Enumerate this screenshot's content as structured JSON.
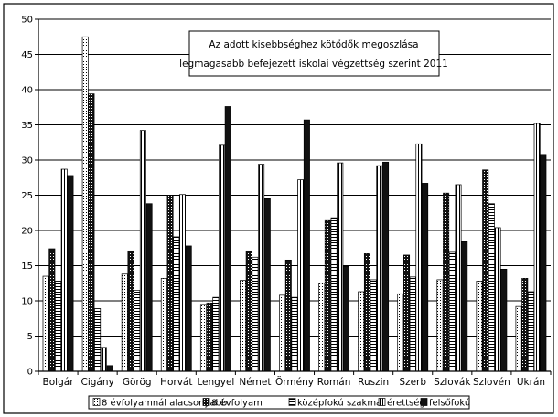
{
  "chart_data": {
    "type": "bar",
    "title_line1": "Az adott kisebbséghez kötődők megoszlása",
    "title_line2": "legmagasabb befejezett iskolai végzettség szerint 2011",
    "ylim": [
      0,
      50
    ],
    "y_ticks": [
      "0",
      "5",
      "10",
      "15",
      "20",
      "25",
      "30",
      "35",
      "40",
      "45",
      "50"
    ],
    "grid": true,
    "legend_position": "bottom",
    "categories": [
      "Bolgár",
      "Cigány",
      "Görög",
      "Horvát",
      "Lengyel",
      "Német",
      "Örmény",
      "Román",
      "Ruszin",
      "Szerb",
      "Szlovák",
      "Szlovén",
      "Ukrán"
    ],
    "series": [
      {
        "name": "8 évfolyamnál alacsonyabb",
        "pattern": "dots",
        "values": [
          13.5,
          47.5,
          13.8,
          13.2,
          9.5,
          12.9,
          10.8,
          12.5,
          11.3,
          11.0,
          13.0,
          12.8,
          9.2
        ]
      },
      {
        "name": "8 évfolyam",
        "pattern": "dark-check",
        "values": [
          17.4,
          39.4,
          17.1,
          25.0,
          9.7,
          17.1,
          15.8,
          21.4,
          16.7,
          16.5,
          25.3,
          28.6,
          13.2
        ]
      },
      {
        "name": "középfokú szakma",
        "pattern": "hlines",
        "values": [
          12.8,
          8.9,
          11.5,
          19.1,
          10.5,
          16.2,
          10.5,
          21.8,
          13.0,
          13.4,
          16.9,
          23.8,
          11.3
        ]
      },
      {
        "name": "érettségi",
        "pattern": "vlines",
        "values": [
          28.7,
          3.4,
          34.2,
          25.1,
          32.1,
          29.4,
          27.2,
          29.6,
          29.2,
          32.3,
          26.5,
          20.4,
          35.2
        ]
      },
      {
        "name": "felsőfokú",
        "pattern": "solid",
        "values": [
          27.8,
          0.8,
          23.8,
          17.8,
          37.6,
          24.5,
          35.7,
          14.9,
          29.7,
          26.7,
          18.4,
          14.5,
          30.8
        ]
      }
    ]
  }
}
